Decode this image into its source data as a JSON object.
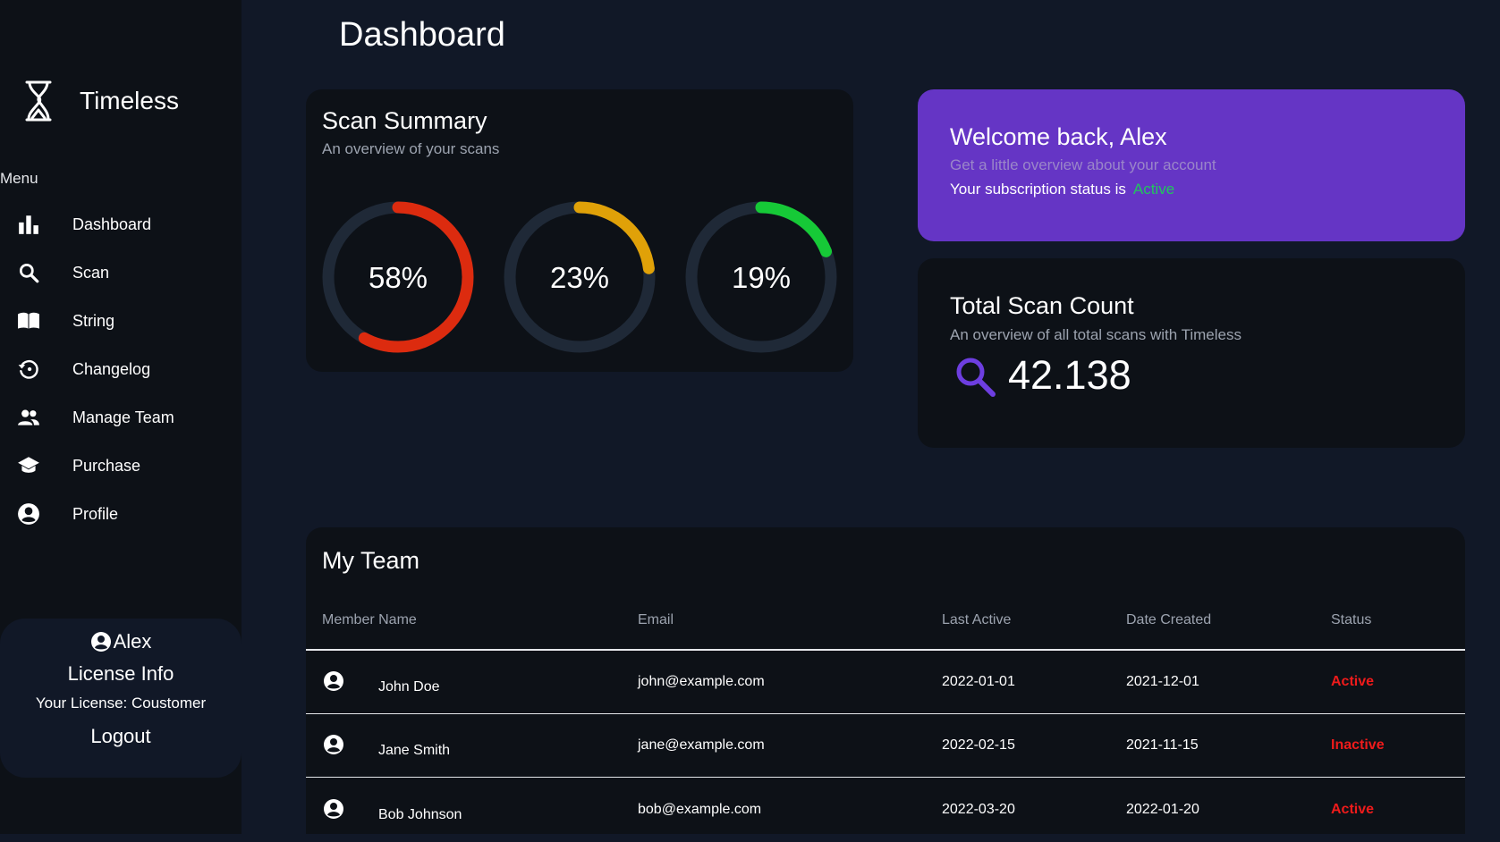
{
  "brand": {
    "name": "Timeless"
  },
  "sidebar": {
    "menu_label": "Menu",
    "items": [
      {
        "label": "Dashboard",
        "icon": "bar-chart-icon"
      },
      {
        "label": "Scan",
        "icon": "search-icon"
      },
      {
        "label": "String",
        "icon": "book-icon"
      },
      {
        "label": "Changelog",
        "icon": "history-icon"
      },
      {
        "label": "Manage Team",
        "icon": "team-icon"
      },
      {
        "label": "Purchase",
        "icon": "graduation-cap-icon"
      },
      {
        "label": "Profile",
        "icon": "profile-icon"
      }
    ],
    "user": {
      "name": "Alex",
      "license_title": "License Info",
      "license_text": "Your License: Coustomer",
      "logout": "Logout"
    }
  },
  "page": {
    "title": "Dashboard"
  },
  "scan_summary": {
    "title": "Scan Summary",
    "subtitle": "An overview of your scans",
    "gauges": [
      {
        "label": "58%",
        "value": 0.58,
        "color": "#dc2b0f"
      },
      {
        "label": "23%",
        "value": 0.23,
        "color": "#e0a108"
      },
      {
        "label": "19%",
        "value": 0.19,
        "color": "#16c937"
      }
    ],
    "track_color": "#1f2937"
  },
  "welcome": {
    "title": "Welcome back, Alex",
    "subtitle": "Get a little overview about your account",
    "status_text": "Your subscription status is",
    "status_value": "Active"
  },
  "total_scans": {
    "title": "Total Scan Count",
    "subtitle": "An overview of all total scans with Timeless",
    "value": "42.138"
  },
  "team": {
    "title": "My Team",
    "columns": [
      "Member Name",
      "Email",
      "Last Active",
      "Date Created",
      "Status"
    ],
    "rows": [
      {
        "name": "John Doe",
        "email": "john@example.com",
        "last_active": "2022-01-01",
        "created": "2021-12-01",
        "status": "Active"
      },
      {
        "name": "Jane Smith",
        "email": "jane@example.com",
        "last_active": "2022-02-15",
        "created": "2021-11-15",
        "status": "Inactive"
      },
      {
        "name": "Bob Johnson",
        "email": "bob@example.com",
        "last_active": "2022-03-20",
        "created": "2022-01-20",
        "status": "Active"
      }
    ]
  }
}
